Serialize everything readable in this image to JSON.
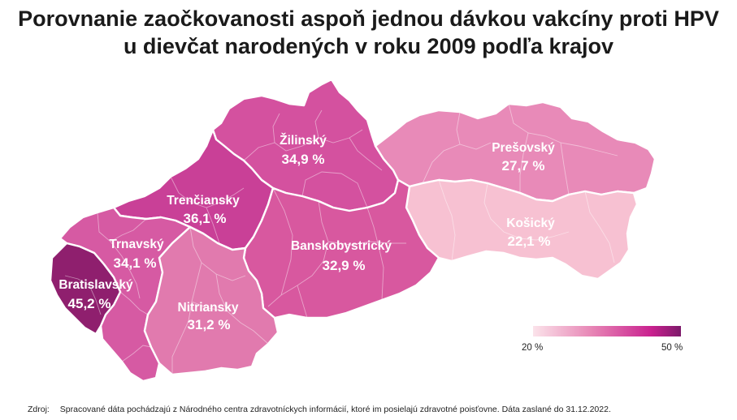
{
  "title": {
    "line1": "Porovnanie zaočkovanosti aspoň jednou dávkou vakcíny proti HPV",
    "line2": "u dievčat narodených v roku 2009 podľa krajov"
  },
  "regions": [
    {
      "id": "zilinsky",
      "name": "Žilinský",
      "value_label": "34,9 %",
      "value": 34.9,
      "color": "#d4519f"
    },
    {
      "id": "presovsky",
      "name": "Prešovský",
      "value_label": "27,7 %",
      "value": 27.7,
      "color": "#e88ab8"
    },
    {
      "id": "trenciansky",
      "name": "Trenčiansky",
      "value_label": "36,1 %",
      "value": 36.1,
      "color": "#c94097"
    },
    {
      "id": "kosicky",
      "name": "Košický",
      "value_label": "22,1 %",
      "value": 22.1,
      "color": "#f7c1d2"
    },
    {
      "id": "trnavsky",
      "name": "Trnavský",
      "value_label": "34,1 %",
      "value": 34.1,
      "color": "#d65aa3"
    },
    {
      "id": "banskobystricky",
      "name": "Banskobystrický",
      "value_label": "32,9 %",
      "value": 32.9,
      "color": "#d8589f"
    },
    {
      "id": "bratislavsky",
      "name": "Bratislavský",
      "value_label": "45,2 %",
      "value": 45.2,
      "color": "#8f1f6e"
    },
    {
      "id": "nitriansky",
      "name": "Nitriansky",
      "value_label": "31,2 %",
      "value": 31.2,
      "color": "#e17aae"
    }
  ],
  "legend": {
    "min_label": "20 %",
    "max_label": "50 %",
    "min": 20,
    "max": 50,
    "colors": [
      "#fbe3ea",
      "#e785b5",
      "#c9218f",
      "#7d1a6a"
    ]
  },
  "source": {
    "label": "Zdroj:",
    "text": "Spracované dáta pochádzajú z Národného centra zdravotníckych informácií, ktoré im posielajú zdravotné poisťovne. Dáta zaslané do 31.12.2022."
  }
}
